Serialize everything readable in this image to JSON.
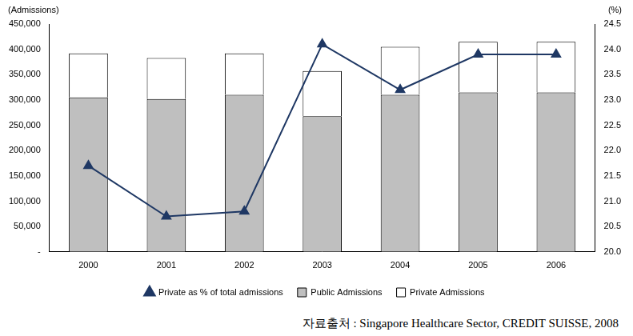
{
  "chart_data": {
    "type": "bar",
    "categories": [
      "2000",
      "2001",
      "2002",
      "2003",
      "2004",
      "2005",
      "2006"
    ],
    "series": [
      {
        "name": "Public Admissions",
        "color": "#bfbfbf",
        "values": [
          305000,
          302000,
          310000,
          268000,
          310000,
          315000,
          315000
        ]
      },
      {
        "name": "Private Admissions",
        "color": "#ffffff",
        "values": [
          87000,
          81000,
          82000,
          89000,
          95000,
          100000,
          100000
        ]
      },
      {
        "name": "Private as % of total admissions",
        "color": "#1f3864",
        "type": "line",
        "marker": "triangle",
        "axis": "y2",
        "values": [
          21.7,
          20.7,
          20.8,
          24.1,
          23.2,
          23.9,
          23.9
        ]
      }
    ],
    "y_label": "(Admissions)",
    "y2_label": "(%)",
    "ylim": [
      0,
      450000
    ],
    "yticks": [
      {
        "value": 0,
        "label": "-"
      },
      {
        "value": 50000,
        "label": "50,000"
      },
      {
        "value": 100000,
        "label": "100,000"
      },
      {
        "value": 150000,
        "label": "150,000"
      },
      {
        "value": 200000,
        "label": "200,000"
      },
      {
        "value": 250000,
        "label": "250,000"
      },
      {
        "value": 300000,
        "label": "300,000"
      },
      {
        "value": 350000,
        "label": "350,000"
      },
      {
        "value": 400000,
        "label": "400,000"
      },
      {
        "value": 450000,
        "label": "450,000"
      }
    ],
    "y2lim": [
      20,
      24.5
    ],
    "y2ticks": [
      {
        "value": 20,
        "label": "20.0"
      },
      20.5,
      {
        "value": 21,
        "label": "21.0"
      },
      21.5,
      {
        "value": 22,
        "label": "22.0"
      },
      22.5,
      {
        "value": 23,
        "label": "23.0"
      },
      23.5,
      {
        "value": 24,
        "label": "24.0"
      },
      24.5
    ],
    "stacked": true,
    "grid": false,
    "legend": "bottom",
    "annotations": [
      "자료출처 : Singapore Healthcare Sector, CREDIT SUISSE, 2008"
    ]
  }
}
